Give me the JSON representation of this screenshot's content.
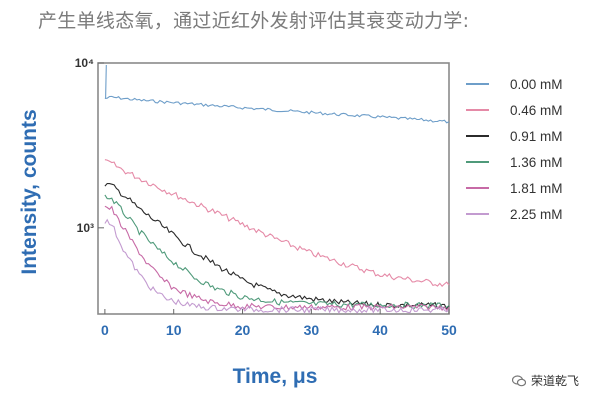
{
  "heading": "产生单线态氧，通过近红外发射评估其衰变动力学:",
  "watermark": "荣道乾飞",
  "chart_data": {
    "type": "line",
    "xlabel": "Time, μs",
    "ylabel": "Intensity, counts",
    "xlim": [
      -1,
      50
    ],
    "ylim": [
      300,
      10000
    ],
    "yscale": "log",
    "xticks": [
      0,
      10,
      20,
      30,
      40,
      50
    ],
    "yticks": [
      {
        "value": 1000,
        "label": "10³"
      },
      {
        "value": 10000,
        "label": "10⁴"
      }
    ],
    "legend_position": "right",
    "series": [
      {
        "name": "0.00 mM",
        "color": "#6e9ec9",
        "x": [
          0,
          1,
          5,
          10,
          20,
          30,
          40,
          50
        ],
        "y": [
          6100,
          6200,
          5950,
          5750,
          5350,
          5000,
          4700,
          4400
        ]
      },
      {
        "name": "0.46 mM",
        "color": "#e58aa7",
        "x": [
          0,
          1,
          3,
          5,
          8,
          10,
          15,
          20,
          25,
          30,
          35,
          40,
          45,
          50
        ],
        "y": [
          2500,
          2450,
          2200,
          2000,
          1750,
          1600,
          1300,
          1050,
          850,
          700,
          600,
          520,
          480,
          450
        ]
      },
      {
        "name": "0.91 mM",
        "color": "#2b2b2b",
        "x": [
          0,
          1,
          3,
          5,
          8,
          10,
          13,
          16,
          20,
          25,
          30,
          35,
          40,
          45,
          50
        ],
        "y": [
          1850,
          1800,
          1550,
          1300,
          1050,
          900,
          720,
          600,
          480,
          400,
          370,
          350,
          340,
          340,
          335
        ]
      },
      {
        "name": "1.36 mM",
        "color": "#4f9a7a",
        "x": [
          0,
          1,
          3,
          5,
          8,
          10,
          13,
          16,
          20,
          25,
          30,
          40,
          50
        ],
        "y": [
          1550,
          1500,
          1200,
          950,
          720,
          620,
          500,
          430,
          380,
          355,
          345,
          340,
          338
        ]
      },
      {
        "name": "1.81 mM",
        "color": "#c76aa6",
        "x": [
          0,
          1,
          2,
          4,
          6,
          8,
          10,
          13,
          16,
          20,
          25,
          30,
          40,
          50
        ],
        "y": [
          1350,
          1300,
          1100,
          820,
          620,
          500,
          430,
          380,
          350,
          335,
          330,
          330,
          330,
          330
        ]
      },
      {
        "name": "2.25 mM",
        "color": "#c39bd0",
        "x": [
          0,
          1,
          2,
          3,
          5,
          7,
          9,
          12,
          15,
          20,
          30,
          40,
          50
        ],
        "y": [
          1100,
          1050,
          850,
          700,
          520,
          420,
          370,
          340,
          328,
          320,
          318,
          318,
          318
        ]
      }
    ]
  }
}
